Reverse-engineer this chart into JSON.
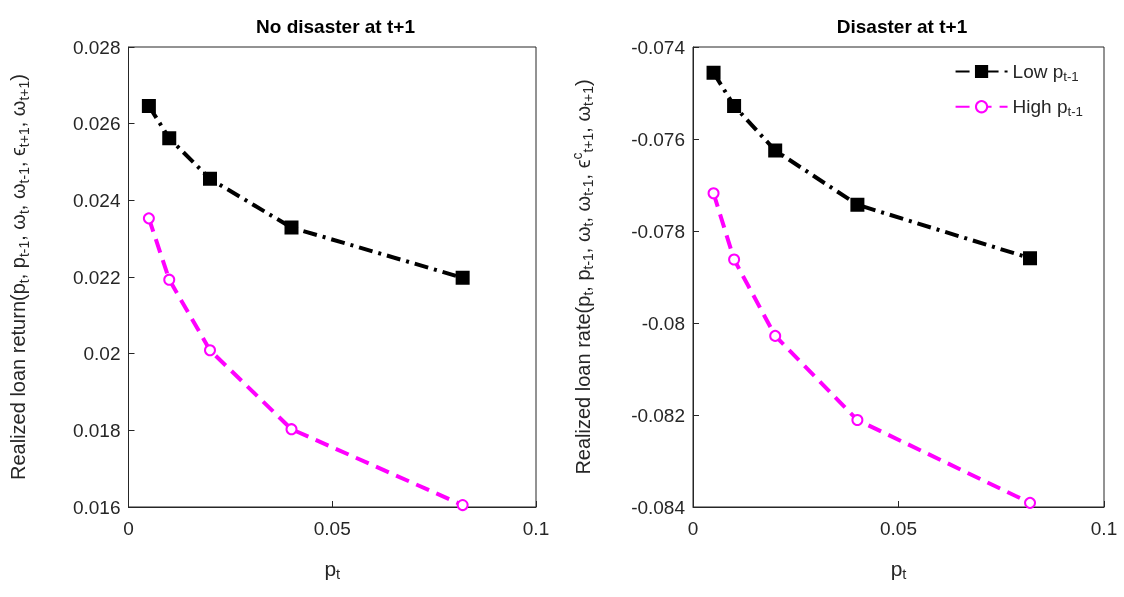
{
  "chart_data": [
    {
      "type": "line",
      "title": "No disaster at t+1",
      "xlabel": "p$_{t}$",
      "ylabel": "Realized loan return(p$_{t}$, p$_{t-1}$, ω$_{t}$, ω$_{t-1}$, ϵ$_{t+1}$, ω$_{t+1}$)",
      "xlim": [
        0,
        0.1
      ],
      "xticks": [
        0,
        0.05,
        0.1
      ],
      "ylim": [
        0.016,
        0.028
      ],
      "yticks": [
        0.016,
        0.018,
        0.02,
        0.022,
        0.024,
        0.026,
        0.028
      ],
      "grid": false,
      "legend": false,
      "series": [
        {
          "color": "#000000",
          "marker": "square",
          "line_style": "dashdot",
          "x": [
            0.005,
            0.01,
            0.02,
            0.04,
            0.082
          ],
          "values": [
            0.02646,
            0.02562,
            0.02456,
            0.02329,
            0.02198
          ]
        },
        {
          "color": "#ff00ff",
          "marker": "circle",
          "line_style": "dashed",
          "x": [
            0.005,
            0.01,
            0.02,
            0.04,
            0.082
          ],
          "values": [
            0.02353,
            0.02193,
            0.02009,
            0.01803,
            0.01605
          ]
        }
      ]
    },
    {
      "type": "line",
      "title": "Disaster at t+1",
      "xlabel": "p$_{t}$",
      "ylabel": "Realized loan rate(p$_{t}$, p$_{t-1}$, ω$_{t}$, ω$_{t-1}$, ϵ$^{c}$$_{t+1}$, ω$_{t+1}$)",
      "xlim": [
        0,
        0.1
      ],
      "xticks": [
        0,
        0.05,
        0.1
      ],
      "ylim": [
        -0.084,
        -0.074
      ],
      "yticks": [
        -0.084,
        -0.082,
        -0.08,
        -0.078,
        -0.076,
        -0.074
      ],
      "grid": false,
      "legend": "top right",
      "series": [
        {
          "name": "Low p$_{t-1}$",
          "color": "#000000",
          "marker": "square",
          "line_style": "dashdot",
          "x": [
            0.005,
            0.01,
            0.02,
            0.04,
            0.082
          ],
          "values": [
            -0.07456,
            -0.07528,
            -0.07625,
            -0.07743,
            -0.07859
          ]
        },
        {
          "name": "High p$_{t-1}$",
          "color": "#ff00ff",
          "marker": "circle",
          "line_style": "dashed",
          "x": [
            0.005,
            0.01,
            0.02,
            0.04,
            0.082
          ],
          "values": [
            -0.07718,
            -0.07862,
            -0.08028,
            -0.08211,
            -0.08391
          ]
        }
      ]
    }
  ]
}
